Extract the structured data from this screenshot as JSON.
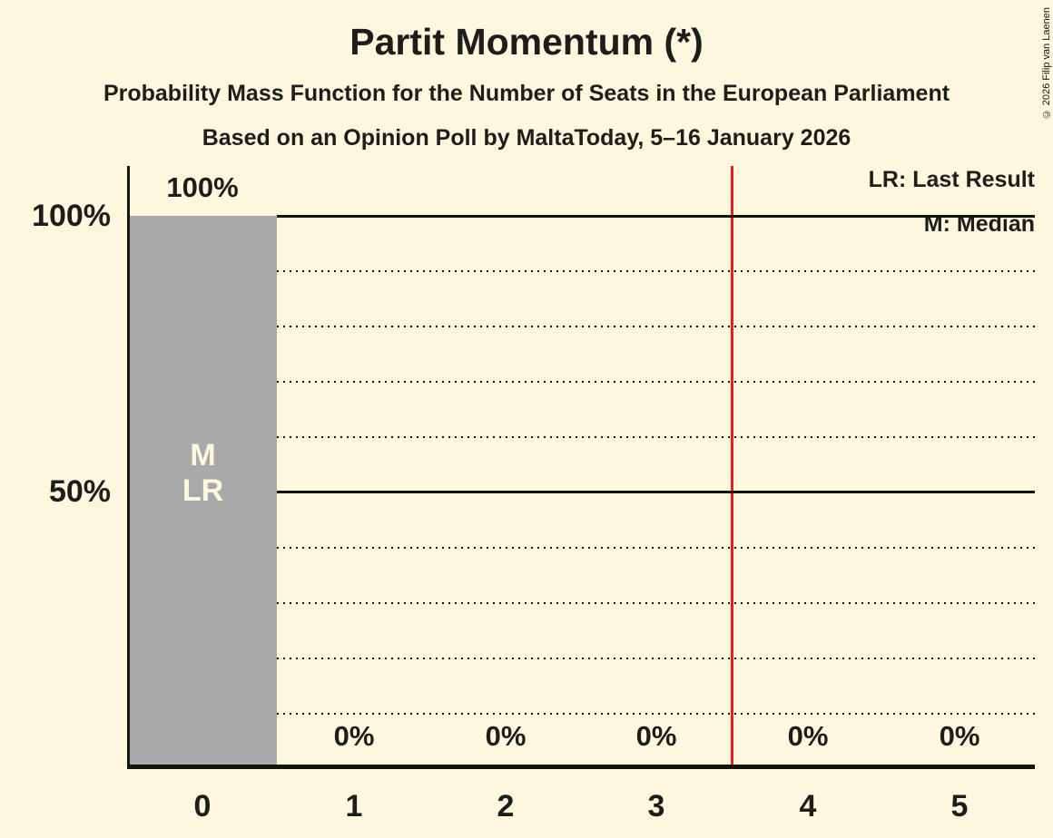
{
  "title": "Partit Momentum (*)",
  "subtitle": "Probability Mass Function for the Number of Seats in the European Parliament",
  "subsubtitle": "Based on an Opinion Poll by MaltaToday, 5–16 January 2026",
  "copyright": "© 2026 Filip van Laenen",
  "legend": {
    "last_result": "LR: Last Result",
    "median": "M: Median"
  },
  "chart_data": {
    "type": "bar",
    "title": "Partit Momentum (*)",
    "categories": [
      "0",
      "1",
      "2",
      "3",
      "4",
      "5"
    ],
    "values": [
      100,
      0,
      0,
      0,
      0,
      0
    ],
    "value_labels": [
      "100%",
      "0%",
      "0%",
      "0%",
      "0%",
      "0%"
    ],
    "ylim": [
      0,
      100
    ],
    "y_tick_values": [
      100,
      50
    ],
    "y_tick_labels": [
      "100%",
      "50%"
    ],
    "grid": "dotted horizontal lines every 10%, solid lines at 50% and 100%",
    "legend_position": "top-right",
    "bar_color": "#a9a9a9",
    "background_color": "#fcf8de",
    "threshold_line": {
      "x": 3.5,
      "color": "#ee1c24"
    },
    "annotations": {
      "median_label": "M",
      "last_result_label": "LR",
      "median_seat": "0",
      "last_result_seat": "0"
    }
  }
}
